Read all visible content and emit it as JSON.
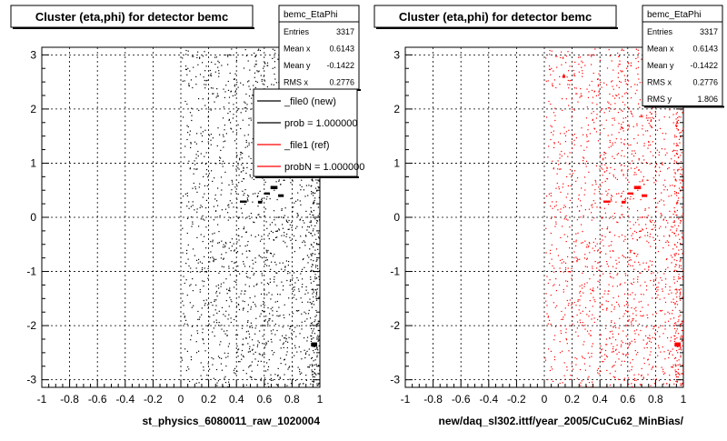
{
  "chart_data": [
    {
      "type": "scatter",
      "title": "Cluster (eta,phi) for detector bemc",
      "xlabel": "st_physics_6080011_raw_1020004",
      "ylabel": "",
      "xlim": [
        -1,
        1
      ],
      "ylim": [
        -3.14,
        3.14
      ],
      "x_ticks": [
        "-1",
        "-0.8",
        "-0.6",
        "-0.4",
        "-0.2",
        "0",
        "0.2",
        "0.4",
        "0.6",
        "0.8",
        "1"
      ],
      "y_ticks": [
        "3",
        "2",
        "1",
        "0",
        "-1",
        "-2",
        "-3"
      ],
      "grid": true,
      "marker_color": "#000000",
      "stats": {
        "name": "bemc_EtaPhi",
        "rows": [
          {
            "label": "Entries",
            "value": "3317"
          },
          {
            "label": "Mean x",
            "value": "0.6143"
          },
          {
            "label": "Mean y",
            "value": "-0.1422"
          },
          {
            "label": "RMS x",
            "value": "0.2776"
          }
        ]
      },
      "legend": {
        "position": "top-right",
        "entries": [
          {
            "label": "_file0 (new)",
            "color": "#000000"
          },
          {
            "label": "prob = 1.000000",
            "color": "#000000"
          },
          {
            "label": "_file1 (ref)",
            "color": "#ff0000"
          },
          {
            "label": "probN = 1.000000",
            "color": "#ff0000"
          }
        ]
      },
      "clusters": [
        {
          "x": 0.45,
          "y": 0.29,
          "w": 0.05,
          "h": 0.04
        },
        {
          "x": 0.57,
          "y": 0.28,
          "w": 0.03,
          "h": 0.05
        },
        {
          "x": 0.62,
          "y": 0.44,
          "w": 0.04,
          "h": 0.04
        },
        {
          "x": 0.67,
          "y": 0.55,
          "w": 0.05,
          "h": 0.06
        },
        {
          "x": 0.72,
          "y": 0.4,
          "w": 0.04,
          "h": 0.05
        },
        {
          "x": 0.96,
          "y": -2.35,
          "w": 0.04,
          "h": 0.08
        }
      ]
    },
    {
      "type": "scatter",
      "title": "Cluster (eta,phi) for detector bemc",
      "xlabel": "new/daq_sl302.ittf/year_2005/CuCu62_MinBias/",
      "ylabel": "",
      "xlim": [
        -1,
        1
      ],
      "ylim": [
        -3.14,
        3.14
      ],
      "x_ticks": [
        "-1",
        "-0.8",
        "-0.6",
        "-0.4",
        "-0.2",
        "0",
        "0.2",
        "0.4",
        "0.6",
        "0.8",
        "1"
      ],
      "y_ticks": [
        "3",
        "2",
        "1",
        "0",
        "-1",
        "-2",
        "-3"
      ],
      "grid": true,
      "marker_color": "#ff0000",
      "stats": {
        "name": "bemc_EtaPhi",
        "rows": [
          {
            "label": "Entries",
            "value": "3317"
          },
          {
            "label": "Mean x",
            "value": "0.6143"
          },
          {
            "label": "Mean y",
            "value": "-0.1422"
          },
          {
            "label": "RMS x",
            "value": "0.2776"
          },
          {
            "label": "RMS y",
            "value": "1.806"
          }
        ]
      },
      "clusters": [
        {
          "x": 0.45,
          "y": 0.29,
          "w": 0.05,
          "h": 0.04
        },
        {
          "x": 0.57,
          "y": 0.28,
          "w": 0.03,
          "h": 0.05
        },
        {
          "x": 0.62,
          "y": 0.44,
          "w": 0.04,
          "h": 0.04
        },
        {
          "x": 0.67,
          "y": 0.55,
          "w": 0.05,
          "h": 0.06
        },
        {
          "x": 0.72,
          "y": 0.4,
          "w": 0.04,
          "h": 0.05
        },
        {
          "x": 0.96,
          "y": -2.35,
          "w": 0.04,
          "h": 0.08
        },
        {
          "x": 0.14,
          "y": 2.6,
          "w": 0.02,
          "h": 0.05
        }
      ]
    }
  ]
}
